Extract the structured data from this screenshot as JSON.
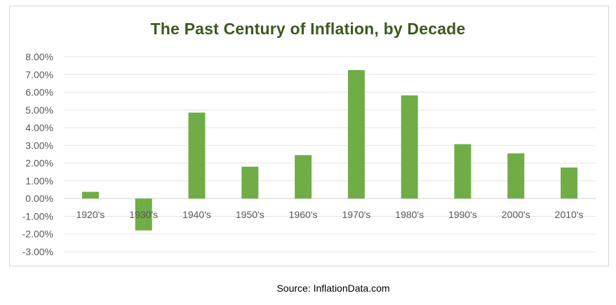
{
  "chart_data": {
    "type": "bar",
    "title": "The Past Century of Inflation, by Decade",
    "xlabel": "",
    "ylabel": "",
    "categories": [
      "1920's",
      "1930's",
      "1940's",
      "1950's",
      "1960's",
      "1970's",
      "1980's",
      "1990's",
      "2000's",
      "2010's"
    ],
    "values": [
      0.38,
      -1.8,
      4.85,
      1.8,
      2.45,
      7.25,
      5.82,
      3.07,
      2.55,
      1.75
    ],
    "ylim": [
      -3,
      8
    ],
    "yticks": [
      "8.00%",
      "7.00%",
      "6.00%",
      "5.00%",
      "4.00%",
      "3.00%",
      "2.00%",
      "1.00%",
      "0.00%",
      "-1.00%",
      "-2.00%",
      "-3.00%"
    ],
    "grid": true,
    "legend": "none",
    "bar_color": "#70ad47"
  },
  "source_text": "Source: InflationData.com"
}
